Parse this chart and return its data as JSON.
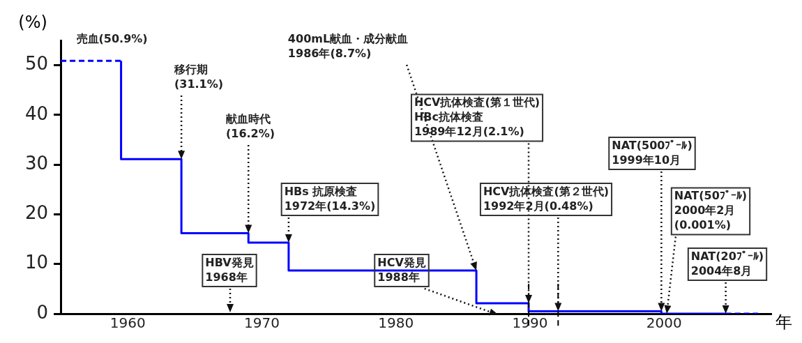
{
  "chart_data": {
    "type": "step",
    "xlabel": "年",
    "ylabel": "(%)",
    "xlim": [
      1955,
      2008
    ],
    "xticks": [
      1960,
      1970,
      1980,
      1990,
      2000
    ],
    "ylim": [
      0,
      55
    ],
    "yticks": [
      0,
      10,
      20,
      30,
      40,
      50
    ],
    "grid": false,
    "legend": false,
    "series": [
      {
        "color": "#0000ff",
        "line_style": "dashed",
        "x": [
          1955,
          1959.5
        ],
        "values": [
          50.9,
          50.9
        ]
      },
      {
        "color": "#0000ff",
        "line_style": "solid",
        "x": [
          1959.5,
          1964,
          1969,
          1972,
          1986,
          1989.9,
          1992.1,
          1999.8,
          2000.2,
          2004.6
        ],
        "values": [
          50.9,
          31.1,
          16.2,
          14.3,
          8.7,
          2.1,
          0.48,
          0.48,
          0.001,
          0.001
        ]
      },
      {
        "color": "#0000ff",
        "line_style": "dashed",
        "x": [
          2004.6,
          2007
        ],
        "values": [
          0.001,
          0.001
        ]
      }
    ],
    "ref_lines": [
      {
        "axis": "x",
        "value": 1989.9,
        "color": "#000000",
        "line_style": "dashed"
      },
      {
        "axis": "x",
        "value": 1992.1,
        "color": "#000000",
        "line_style": "dashed"
      }
    ],
    "annotations": [
      {
        "text": "売血(50.9%)",
        "x": 1957,
        "y": 50.9
      },
      {
        "text": "移行期\n(31.1%)",
        "x": 1964,
        "y": 31.1
      },
      {
        "text": "献血時代\n(16.2%)",
        "x": 1969,
        "y": 16.2
      },
      {
        "text": "HBs 抗原検査\n1972年(14.3%)",
        "x": 1972,
        "y": 14.3
      },
      {
        "text": "400mL献血・成分献血\n1986年(8.7%)",
        "x": 1986,
        "y": 8.7
      },
      {
        "text": "HCV抗体検査(第１世代)\nHBc抗体検査\n1989年12月(2.1%)",
        "x": 1989.9,
        "y": 2.1
      },
      {
        "text": "HCV抗体検査(第２世代)\n1992年2月(0.48%)",
        "x": 1992.1,
        "y": 0.48
      },
      {
        "text": "NAT(500ﾌﾟｰﾙ)\n1999年10月",
        "x": 1999.8,
        "y": 0.48
      },
      {
        "text": "NAT(50ﾌﾟｰﾙ)\n2000年2月\n(0.001%)",
        "x": 2000.2,
        "y": 0.001
      },
      {
        "text": "NAT(20ﾌﾟｰﾙ)\n2004年8月",
        "x": 2004.6,
        "y": 0.001
      },
      "HBV発見\n1968年",
      "HCV発見\n1988年"
    ]
  }
}
